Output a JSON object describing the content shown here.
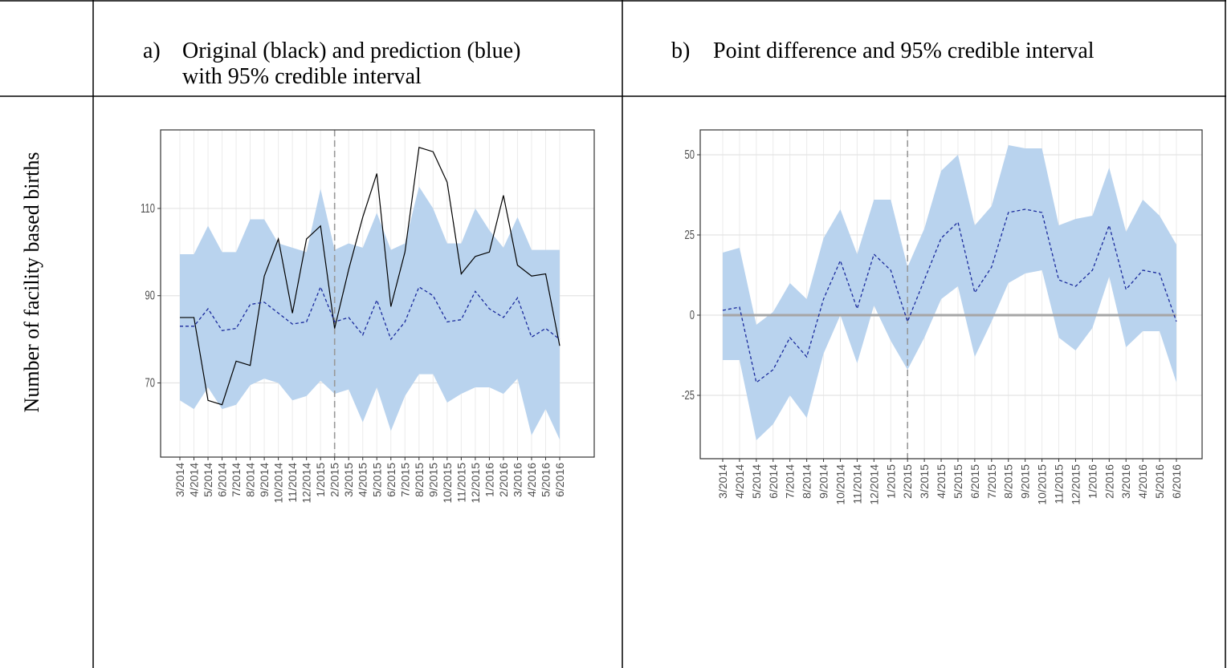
{
  "table": {
    "row_label": "Number of facility based births",
    "headers": [
      {
        "marker": "a)",
        "lines": [
          "Original (black) and prediction (blue)",
          "with 95% credible interval"
        ]
      },
      {
        "marker": "b)",
        "lines": [
          "Point difference and 95% credible interval"
        ]
      }
    ]
  },
  "chart_data": [
    {
      "type": "line",
      "categories": [
        "3/2014",
        "4/2014",
        "5/2014",
        "6/2014",
        "7/2014",
        "8/2014",
        "9/2014",
        "10/2014",
        "11/2014",
        "12/2014",
        "1/2015",
        "2/2015",
        "3/2015",
        "4/2015",
        "5/2015",
        "6/2015",
        "7/2015",
        "8/2015",
        "9/2015",
        "10/2015",
        "11/2015",
        "12/2015",
        "1/2016",
        "2/2016",
        "3/2016",
        "4/2016",
        "5/2016",
        "6/2016"
      ],
      "band": {
        "color": "#b9d3ee",
        "upper": [
          99.5,
          99.5,
          106,
          100,
          100,
          107.5,
          107.5,
          102,
          101,
          100,
          114.5,
          100.5,
          102,
          101,
          109,
          100.5,
          102,
          115,
          110,
          102,
          102,
          110,
          105,
          101,
          108,
          100.5,
          100.5,
          100.5
        ],
        "lower": [
          66,
          64,
          69,
          64,
          65,
          69.5,
          71,
          70,
          66,
          67,
          70.5,
          67.5,
          68.5,
          61,
          69,
          59,
          67,
          72,
          72,
          65.5,
          67.5,
          69,
          69,
          67.5,
          71,
          58,
          64,
          57
        ]
      },
      "series": [
        {
          "color": "#000000",
          "style": "solid",
          "values": [
            85,
            85,
            66,
            65,
            75,
            74,
            94.5,
            103,
            86,
            103,
            106,
            82.5,
            96,
            108,
            118,
            87.5,
            100,
            124,
            123,
            116,
            95,
            99,
            100,
            113,
            97,
            94.5,
            95,
            78.5
          ]
        },
        {
          "color": "#1a2a9c",
          "style": "dashed",
          "values": [
            83,
            83,
            87,
            82,
            82.5,
            88,
            88.5,
            86,
            83.5,
            84,
            92,
            84,
            85,
            81,
            89,
            80,
            84,
            92,
            90,
            84,
            84.5,
            91,
            87,
            85,
            89.5,
            80.5,
            82.5,
            80
          ]
        }
      ],
      "ylim": [
        53,
        128
      ],
      "yticks": [
        70,
        90,
        110
      ],
      "grid": true,
      "vline": "2/2015"
    },
    {
      "type": "line",
      "categories": [
        "3/2014",
        "4/2014",
        "5/2014",
        "6/2014",
        "7/2014",
        "8/2014",
        "9/2014",
        "10/2014",
        "11/2014",
        "12/2014",
        "1/2015",
        "2/2015",
        "3/2015",
        "4/2015",
        "5/2015",
        "6/2015",
        "7/2015",
        "8/2015",
        "9/2015",
        "10/2015",
        "11/2015",
        "12/2015",
        "1/2016",
        "2/2016",
        "3/2016",
        "4/2016",
        "5/2016",
        "6/2016"
      ],
      "band": {
        "color": "#b9d3ee",
        "upper": [
          19.5,
          21,
          -3,
          1,
          10,
          5,
          24,
          33,
          19,
          36,
          36,
          15,
          27,
          45,
          50,
          28,
          34,
          53,
          52,
          52,
          28,
          30,
          31,
          46,
          26,
          36,
          31,
          22
        ],
        "lower": [
          -14,
          -14,
          -39,
          -34,
          -25,
          -32,
          -12,
          0,
          -15,
          3,
          -8,
          -17,
          -7,
          5,
          9,
          -13,
          -2,
          10,
          13,
          14,
          -7,
          -11,
          -4,
          12,
          -10,
          -5,
          -5,
          -21
        ]
      },
      "series": [
        {
          "color": "#1a2a9c",
          "style": "dashed",
          "values": [
            1.5,
            2.5,
            -21,
            -17,
            -7,
            -13,
            5,
            17,
            2,
            19,
            14,
            -2,
            11,
            24,
            29,
            7,
            15,
            32,
            33,
            32,
            11,
            9,
            14,
            28,
            8,
            14,
            13,
            -2
          ]
        }
      ],
      "ylim": [
        -44.75,
        57.75
      ],
      "yticks": [
        -25,
        0,
        25,
        50
      ],
      "grid": true,
      "vline": "2/2015",
      "hline": 0
    }
  ]
}
